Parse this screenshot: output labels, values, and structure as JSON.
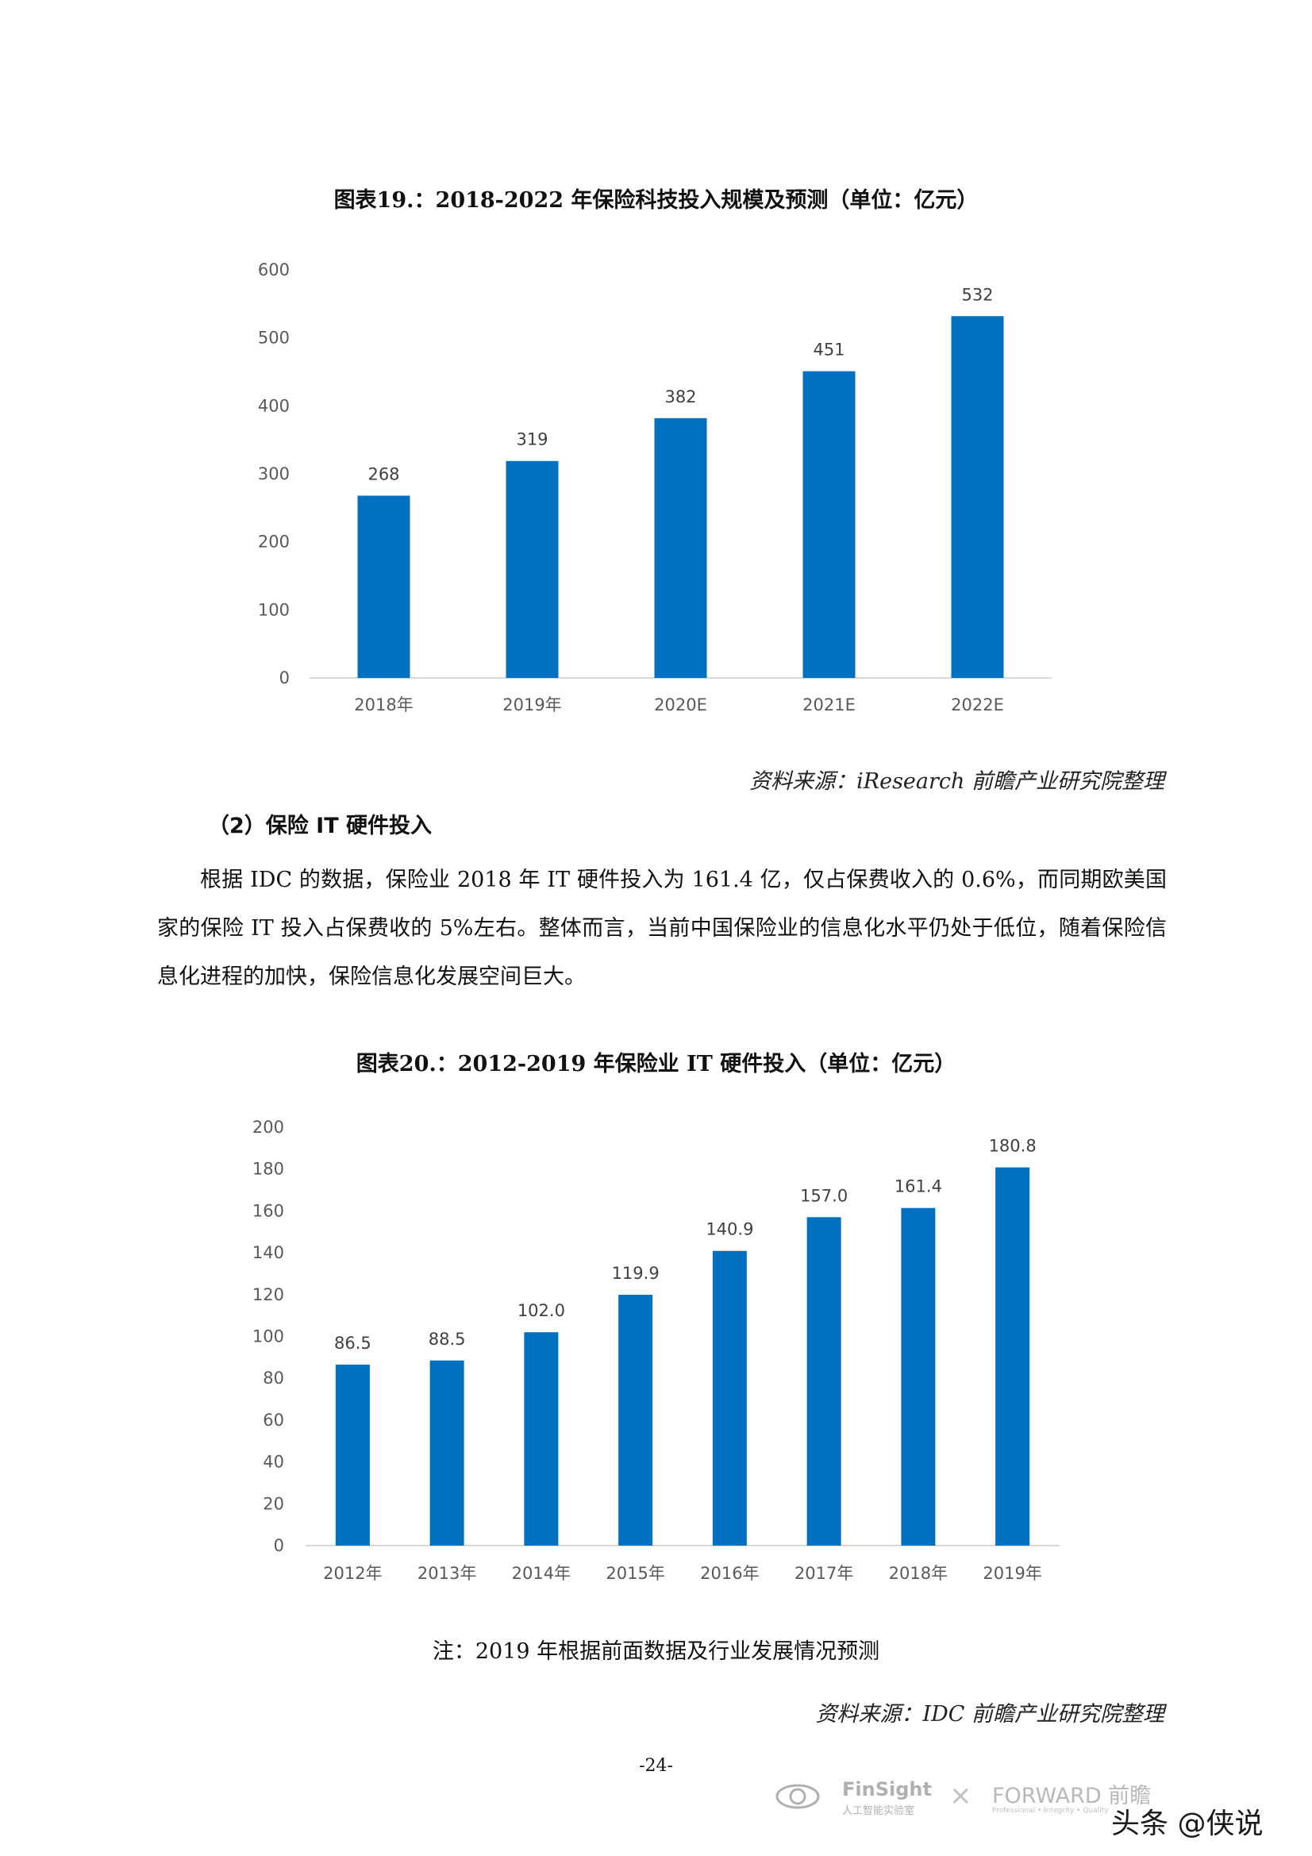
{
  "chart1": {
    "title": "图表19.：2018-2022 年保险科技投入规模及预测（单位：亿元）",
    "source": "资料来源：iResearch  前瞻产业研究院整理"
  },
  "section": {
    "heading": "（2）保险 IT 硬件投入",
    "paragraph": "根据 IDC 的数据，保险业 2018 年 IT 硬件投入为 161.4 亿，仅占保费收入的 0.6%，而同期欧美国家的保险 IT 投入占保费收的 5%左右。整体而言，当前中国保险业的信息化水平仍处于低位，随着保险信息化进程的加快，保险信息化发展空间巨大。"
  },
  "chart2": {
    "title": "图表20.：2012-2019 年保险业 IT 硬件投入（单位：亿元）",
    "note": "注：2019 年根据前面数据及行业发展情况预测",
    "source": "资料来源：IDC  前瞻产业研究院整理"
  },
  "page_number": "-24-",
  "footer": {
    "logo1_name": "FinSight",
    "logo1_sub": "人工智能实验室",
    "separator": "×",
    "logo2_name": "FORWARD 前瞻",
    "logo2_sub": "Professional • Integrity • Quality",
    "watermark": "头条 @侠说"
  },
  "chart_data": [
    {
      "type": "bar",
      "categories": [
        "2018年",
        "2019年",
        "2020E",
        "2021E",
        "2022E"
      ],
      "values": [
        268,
        319,
        382,
        451,
        532
      ],
      "data_labels": [
        "268",
        "319",
        "382",
        "451",
        "532"
      ],
      "y_ticks": [
        "0",
        "100",
        "200",
        "300",
        "400",
        "500",
        "600"
      ],
      "ylim": [
        0,
        600
      ],
      "color": "#0070C0",
      "grid": false
    },
    {
      "type": "bar",
      "categories": [
        "2012年",
        "2013年",
        "2014年",
        "2015年",
        "2016年",
        "2017年",
        "2018年",
        "2019年"
      ],
      "values": [
        86.5,
        88.5,
        102.0,
        119.9,
        140.9,
        157.0,
        161.4,
        180.8
      ],
      "data_labels": [
        "86.5",
        "88.5",
        "102.0",
        "119.9",
        "140.9",
        "157.0",
        "161.4",
        "180.8"
      ],
      "y_ticks": [
        "0",
        "20",
        "40",
        "60",
        "80",
        "100",
        "120",
        "140",
        "160",
        "180",
        "200"
      ],
      "ylim": [
        0,
        200
      ],
      "color": "#0070C0",
      "grid": false
    }
  ]
}
